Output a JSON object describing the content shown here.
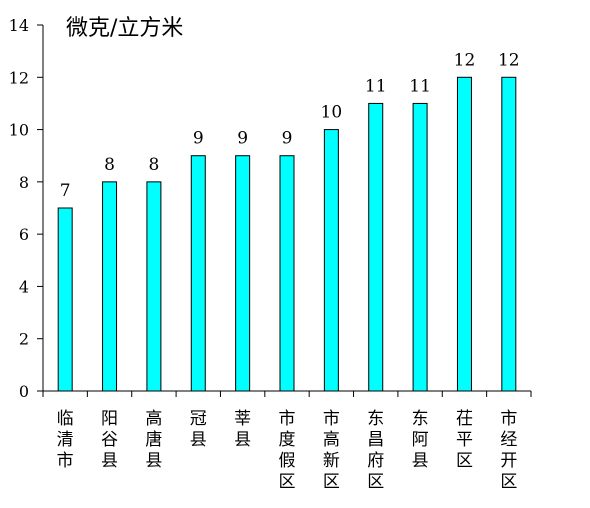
{
  "chart_data": {
    "type": "bar",
    "title": "",
    "unit_label": "微克/立方米",
    "ylabel": "",
    "xlabel": "",
    "ylim": [
      0,
      14
    ],
    "yticks": [
      0,
      2,
      4,
      6,
      8,
      10,
      12,
      14
    ],
    "grid": false,
    "legend": "none",
    "bar_color": "#00FFFF",
    "bar_edge_color": "#000000",
    "categories": [
      "临清市",
      "阳谷县",
      "高唐县",
      "冠县",
      "莘县",
      "市度假区",
      "市高新区",
      "东昌府区",
      "东阿县",
      "茌平区",
      "市经开区"
    ],
    "values": [
      7,
      8,
      8,
      9,
      9,
      9,
      10,
      11,
      11,
      12,
      12
    ]
  }
}
